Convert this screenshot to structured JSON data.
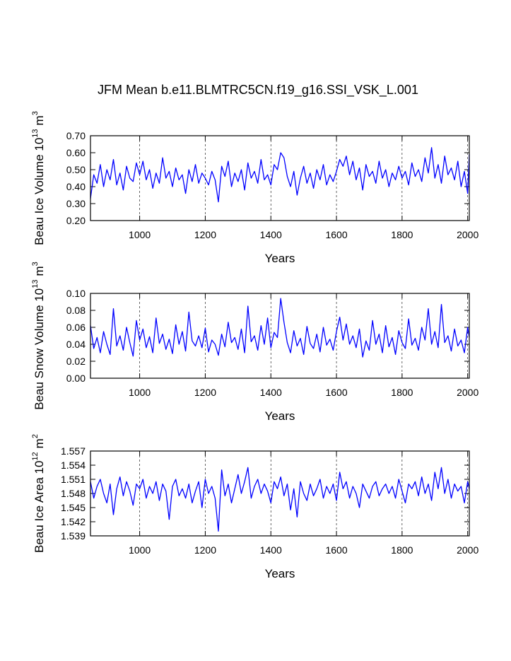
{
  "title": "JFM Mean b.e11.BLMTRC5CN.f19_g16.SSI_VSK_L.001",
  "chart_data": [
    {
      "type": "line",
      "ylabel": [
        "Beau Ice Volume 10",
        "13",
        "m",
        "3"
      ],
      "xlabel": "Years",
      "xlim": [
        850,
        2005
      ],
      "xticks": [
        1000,
        1200,
        1400,
        1600,
        1800,
        2000
      ],
      "ylim": [
        0.2,
        0.7
      ],
      "yticks": [
        {
          "value": 0.2,
          "label": "0.20"
        },
        {
          "value": 0.3,
          "label": "0.30"
        },
        {
          "value": 0.4,
          "label": "0.40"
        },
        {
          "value": 0.5,
          "label": "0.50"
        },
        {
          "value": 0.6,
          "label": "0.60"
        },
        {
          "value": 0.7,
          "label": "0.70"
        }
      ],
      "grid": true,
      "color": "#0000ff",
      "x": [
        850,
        860,
        870,
        880,
        890,
        900,
        910,
        920,
        930,
        940,
        950,
        960,
        970,
        980,
        990,
        1000,
        1010,
        1020,
        1030,
        1040,
        1050,
        1060,
        1070,
        1080,
        1090,
        1100,
        1110,
        1120,
        1130,
        1140,
        1150,
        1160,
        1170,
        1180,
        1190,
        1200,
        1210,
        1220,
        1230,
        1240,
        1250,
        1260,
        1270,
        1280,
        1290,
        1300,
        1310,
        1320,
        1330,
        1340,
        1350,
        1360,
        1370,
        1380,
        1390,
        1400,
        1410,
        1420,
        1430,
        1440,
        1450,
        1460,
        1470,
        1480,
        1490,
        1500,
        1510,
        1520,
        1530,
        1540,
        1550,
        1560,
        1570,
        1580,
        1590,
        1600,
        1610,
        1620,
        1630,
        1640,
        1650,
        1660,
        1670,
        1680,
        1690,
        1700,
        1710,
        1720,
        1730,
        1740,
        1750,
        1760,
        1770,
        1780,
        1790,
        1800,
        1810,
        1820,
        1830,
        1840,
        1850,
        1860,
        1870,
        1880,
        1890,
        1900,
        1910,
        1920,
        1930,
        1940,
        1950,
        1960,
        1970,
        1980,
        1990,
        2000,
        2005
      ],
      "values": [
        0.33,
        0.47,
        0.42,
        0.53,
        0.4,
        0.5,
        0.44,
        0.56,
        0.41,
        0.48,
        0.38,
        0.52,
        0.45,
        0.43,
        0.54,
        0.47,
        0.55,
        0.44,
        0.5,
        0.39,
        0.48,
        0.42,
        0.57,
        0.45,
        0.49,
        0.4,
        0.51,
        0.44,
        0.47,
        0.36,
        0.5,
        0.43,
        0.53,
        0.42,
        0.48,
        0.45,
        0.41,
        0.49,
        0.44,
        0.31,
        0.52,
        0.46,
        0.55,
        0.4,
        0.48,
        0.43,
        0.5,
        0.38,
        0.54,
        0.45,
        0.49,
        0.42,
        0.56,
        0.44,
        0.47,
        0.41,
        0.53,
        0.5,
        0.6,
        0.57,
        0.46,
        0.4,
        0.49,
        0.35,
        0.45,
        0.52,
        0.42,
        0.48,
        0.39,
        0.5,
        0.44,
        0.53,
        0.41,
        0.47,
        0.43,
        0.49,
        0.56,
        0.52,
        0.58,
        0.47,
        0.55,
        0.44,
        0.51,
        0.38,
        0.53,
        0.46,
        0.49,
        0.42,
        0.55,
        0.45,
        0.5,
        0.4,
        0.48,
        0.44,
        0.52,
        0.45,
        0.49,
        0.41,
        0.54,
        0.46,
        0.5,
        0.43,
        0.57,
        0.48,
        0.63,
        0.45,
        0.53,
        0.42,
        0.58,
        0.47,
        0.51,
        0.44,
        0.55,
        0.4,
        0.49,
        0.36,
        0.59
      ]
    },
    {
      "type": "line",
      "ylabel": [
        "Beau Snow Volume 10",
        "13",
        "m",
        "3"
      ],
      "xlabel": "Years",
      "xlim": [
        850,
        2005
      ],
      "xticks": [
        1000,
        1200,
        1400,
        1600,
        1800,
        2000
      ],
      "ylim": [
        0,
        0.1
      ],
      "yticks": [
        {
          "value": 0,
          "label": "0.00"
        },
        {
          "value": 0.02,
          "label": "0.02"
        },
        {
          "value": 0.04,
          "label": "0.04"
        },
        {
          "value": 0.06,
          "label": "0.06"
        },
        {
          "value": 0.08,
          "label": "0.08"
        },
        {
          "value": 0.1,
          "label": "0.10"
        }
      ],
      "grid": true,
      "color": "#0000ff",
      "x": [
        850,
        860,
        870,
        880,
        890,
        900,
        910,
        920,
        930,
        940,
        950,
        960,
        970,
        980,
        990,
        1000,
        1010,
        1020,
        1030,
        1040,
        1050,
        1060,
        1070,
        1080,
        1090,
        1100,
        1110,
        1120,
        1130,
        1140,
        1150,
        1160,
        1170,
        1180,
        1190,
        1200,
        1210,
        1220,
        1230,
        1240,
        1250,
        1260,
        1270,
        1280,
        1290,
        1300,
        1310,
        1320,
        1330,
        1340,
        1350,
        1360,
        1370,
        1380,
        1390,
        1400,
        1410,
        1420,
        1430,
        1440,
        1450,
        1460,
        1470,
        1480,
        1490,
        1500,
        1510,
        1520,
        1530,
        1540,
        1550,
        1560,
        1570,
        1580,
        1590,
        1600,
        1610,
        1620,
        1630,
        1640,
        1650,
        1660,
        1670,
        1680,
        1690,
        1700,
        1710,
        1720,
        1730,
        1740,
        1750,
        1760,
        1770,
        1780,
        1790,
        1800,
        1810,
        1820,
        1830,
        1840,
        1850,
        1860,
        1870,
        1880,
        1890,
        1900,
        1910,
        1920,
        1930,
        1940,
        1950,
        1960,
        1970,
        1980,
        1990,
        2000,
        2005
      ],
      "values": [
        0.062,
        0.035,
        0.048,
        0.03,
        0.055,
        0.04,
        0.028,
        0.082,
        0.038,
        0.05,
        0.033,
        0.06,
        0.042,
        0.026,
        0.068,
        0.045,
        0.058,
        0.036,
        0.049,
        0.03,
        0.071,
        0.041,
        0.052,
        0.034,
        0.046,
        0.029,
        0.063,
        0.04,
        0.055,
        0.032,
        0.078,
        0.044,
        0.038,
        0.05,
        0.036,
        0.059,
        0.031,
        0.045,
        0.04,
        0.027,
        0.052,
        0.037,
        0.066,
        0.042,
        0.048,
        0.034,
        0.058,
        0.03,
        0.085,
        0.043,
        0.05,
        0.033,
        0.062,
        0.04,
        0.071,
        0.036,
        0.054,
        0.048,
        0.094,
        0.066,
        0.042,
        0.03,
        0.056,
        0.038,
        0.047,
        0.028,
        0.061,
        0.041,
        0.035,
        0.052,
        0.031,
        0.06,
        0.039,
        0.046,
        0.033,
        0.055,
        0.072,
        0.045,
        0.064,
        0.04,
        0.05,
        0.036,
        0.058,
        0.025,
        0.044,
        0.033,
        0.068,
        0.04,
        0.052,
        0.03,
        0.062,
        0.037,
        0.048,
        0.028,
        0.056,
        0.042,
        0.035,
        0.07,
        0.039,
        0.047,
        0.033,
        0.06,
        0.045,
        0.082,
        0.04,
        0.055,
        0.036,
        0.087,
        0.042,
        0.05,
        0.032,
        0.058,
        0.038,
        0.045,
        0.03,
        0.06,
        0.048
      ]
    },
    {
      "type": "line",
      "ylabel": [
        "Beau Ice Area 10",
        "12",
        "m",
        "2"
      ],
      "xlabel": "Years",
      "xlim": [
        850,
        2005
      ],
      "xticks": [
        1000,
        1200,
        1400,
        1600,
        1800,
        2000
      ],
      "ylim": [
        1.539,
        1.557
      ],
      "yticks": [
        1.539,
        1.542,
        1.545,
        1.548,
        1.551,
        1.554,
        1.557
      ],
      "grid": true,
      "color": "#0000ff",
      "x": [
        850,
        860,
        870,
        880,
        890,
        900,
        910,
        920,
        930,
        940,
        950,
        960,
        970,
        980,
        990,
        1000,
        1010,
        1020,
        1030,
        1040,
        1050,
        1060,
        1070,
        1080,
        1090,
        1100,
        1110,
        1120,
        1130,
        1140,
        1150,
        1160,
        1170,
        1180,
        1190,
        1200,
        1210,
        1220,
        1230,
        1240,
        1250,
        1260,
        1270,
        1280,
        1290,
        1300,
        1310,
        1320,
        1330,
        1340,
        1350,
        1360,
        1370,
        1380,
        1390,
        1400,
        1410,
        1420,
        1430,
        1440,
        1450,
        1460,
        1470,
        1480,
        1490,
        1500,
        1510,
        1520,
        1530,
        1540,
        1550,
        1560,
        1570,
        1580,
        1590,
        1600,
        1610,
        1620,
        1630,
        1640,
        1650,
        1660,
        1670,
        1680,
        1690,
        1700,
        1710,
        1720,
        1730,
        1740,
        1750,
        1760,
        1770,
        1780,
        1790,
        1800,
        1810,
        1820,
        1830,
        1840,
        1850,
        1860,
        1870,
        1880,
        1890,
        1900,
        1910,
        1920,
        1930,
        1940,
        1950,
        1960,
        1970,
        1980,
        1990,
        2000,
        2005
      ],
      "values": [
        1.5505,
        1.547,
        1.5495,
        1.551,
        1.548,
        1.546,
        1.55,
        1.5435,
        1.549,
        1.5515,
        1.5475,
        1.5505,
        1.5485,
        1.5455,
        1.55,
        1.549,
        1.551,
        1.547,
        1.5495,
        1.548,
        1.5505,
        1.5465,
        1.55,
        1.5485,
        1.5425,
        1.5495,
        1.551,
        1.5475,
        1.549,
        1.547,
        1.55,
        1.546,
        1.5485,
        1.5505,
        1.545,
        1.551,
        1.548,
        1.5495,
        1.547,
        1.54,
        1.553,
        1.5475,
        1.55,
        1.546,
        1.549,
        1.552,
        1.548,
        1.5505,
        1.5535,
        1.547,
        1.5495,
        1.551,
        1.548,
        1.55,
        1.5485,
        1.546,
        1.5505,
        1.549,
        1.5515,
        1.5475,
        1.55,
        1.5445,
        1.549,
        1.543,
        1.5505,
        1.548,
        1.5465,
        1.55,
        1.5475,
        1.549,
        1.551,
        1.547,
        1.5495,
        1.548,
        1.55,
        1.5465,
        1.5525,
        1.549,
        1.5505,
        1.547,
        1.5495,
        1.548,
        1.545,
        1.55,
        1.5485,
        1.547,
        1.5495,
        1.5505,
        1.5475,
        1.549,
        1.55,
        1.548,
        1.5495,
        1.547,
        1.551,
        1.5485,
        1.546,
        1.55,
        1.549,
        1.5505,
        1.5475,
        1.5515,
        1.548,
        1.55,
        1.5465,
        1.5525,
        1.549,
        1.5535,
        1.548,
        1.551,
        1.547,
        1.55,
        1.5485,
        1.5495,
        1.546,
        1.5505,
        1.549
      ]
    }
  ]
}
